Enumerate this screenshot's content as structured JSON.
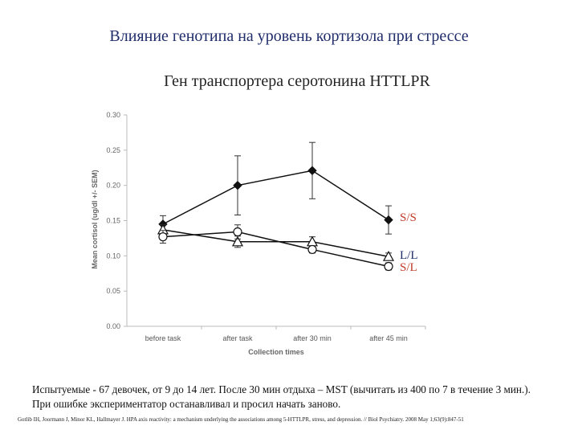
{
  "slide": {
    "title": "Влияние генотипа на уровень кортизола при стрессе",
    "subtitle": "Ген транспортера серотонина HTTLPR",
    "caption_line1": "Испытуемые - 67 девочек, от 9 до 14 лет.  После 30 мин отдыха – MST (вычитать из 400 по 7 в течение 3 мин.).",
    "caption_line2": "При ошибке экспериментатор останавливал и просил начать заново.",
    "reference": "Gotlib IH, Joormann J, Minor KL, Hallmayer J. HPA axis reactivity: a mechanism underlying the associations among 5-HTTLPR, stress, and depression. // Biol Psychiatry. 2008 May 1;63(9):847-51"
  },
  "chart_data": {
    "type": "line",
    "xlabel": "Collection times",
    "ylabel": "Mean cortisol (ug/dl +/- SEM)",
    "categories": [
      "before task",
      "after task",
      "after 30 min",
      "after 45 min"
    ],
    "ylim": [
      0,
      0.3
    ],
    "yticks": [
      "0.00",
      "0.05",
      "0.10",
      "0.15",
      "0.20",
      "0.25",
      "0.30"
    ],
    "grid": false,
    "series": [
      {
        "name": "S/S",
        "marker": "diamond",
        "values": [
          0.145,
          0.2,
          0.221,
          0.151
        ],
        "err": [
          0.012,
          0.042,
          0.04,
          0.02
        ]
      },
      {
        "name": "S/L",
        "marker": "triangle",
        "values": [
          0.137,
          0.12,
          0.12,
          0.099
        ],
        "err": [
          0.007,
          0.008,
          0.007,
          0.005
        ]
      },
      {
        "name": "L/L",
        "marker": "circle",
        "values": [
          0.127,
          0.134,
          0.109,
          0.085
        ],
        "err": [
          0.009,
          0.01,
          0.005,
          0.005
        ]
      }
    ],
    "legend_labels": [
      {
        "text": "S/S",
        "color": "#c0392b"
      },
      {
        "text": "L/L",
        "color": "#1f2d6b"
      },
      {
        "text": "S/L",
        "color": "#c0392b"
      }
    ]
  }
}
